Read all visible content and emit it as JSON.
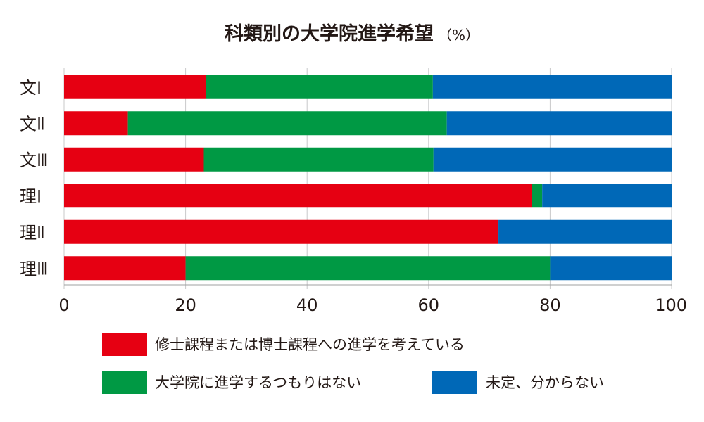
{
  "title": "科類別の大学院進学希望",
  "title_unit": "（%）",
  "chart_data": {
    "type": "bar",
    "orientation": "horizontal",
    "stacked": true,
    "title": "科類別の大学院進学希望",
    "unit": "%",
    "categories": [
      "文Ⅰ",
      "文Ⅱ",
      "文Ⅲ",
      "理Ⅰ",
      "理Ⅱ",
      "理Ⅲ"
    ],
    "series": [
      {
        "name": "修士課程または博士課程への進学を考えている",
        "color": "#e60012",
        "values": [
          23.4,
          10.5,
          23.0,
          77.0,
          71.5,
          20.0
        ]
      },
      {
        "name": "大学院に進学するつもりはない",
        "color": "#009944",
        "values": [
          37.3,
          52.5,
          37.8,
          1.7,
          0,
          60.0
        ]
      },
      {
        "name": "未定、分からない",
        "color": "#0068b7",
        "values": [
          39.3,
          37.0,
          39.2,
          21.3,
          28.5,
          20.0
        ]
      }
    ],
    "xlim": [
      0,
      100
    ],
    "xticks": [
      0,
      20,
      40,
      60,
      80,
      100
    ],
    "grid": true,
    "legend_position": "bottom"
  }
}
